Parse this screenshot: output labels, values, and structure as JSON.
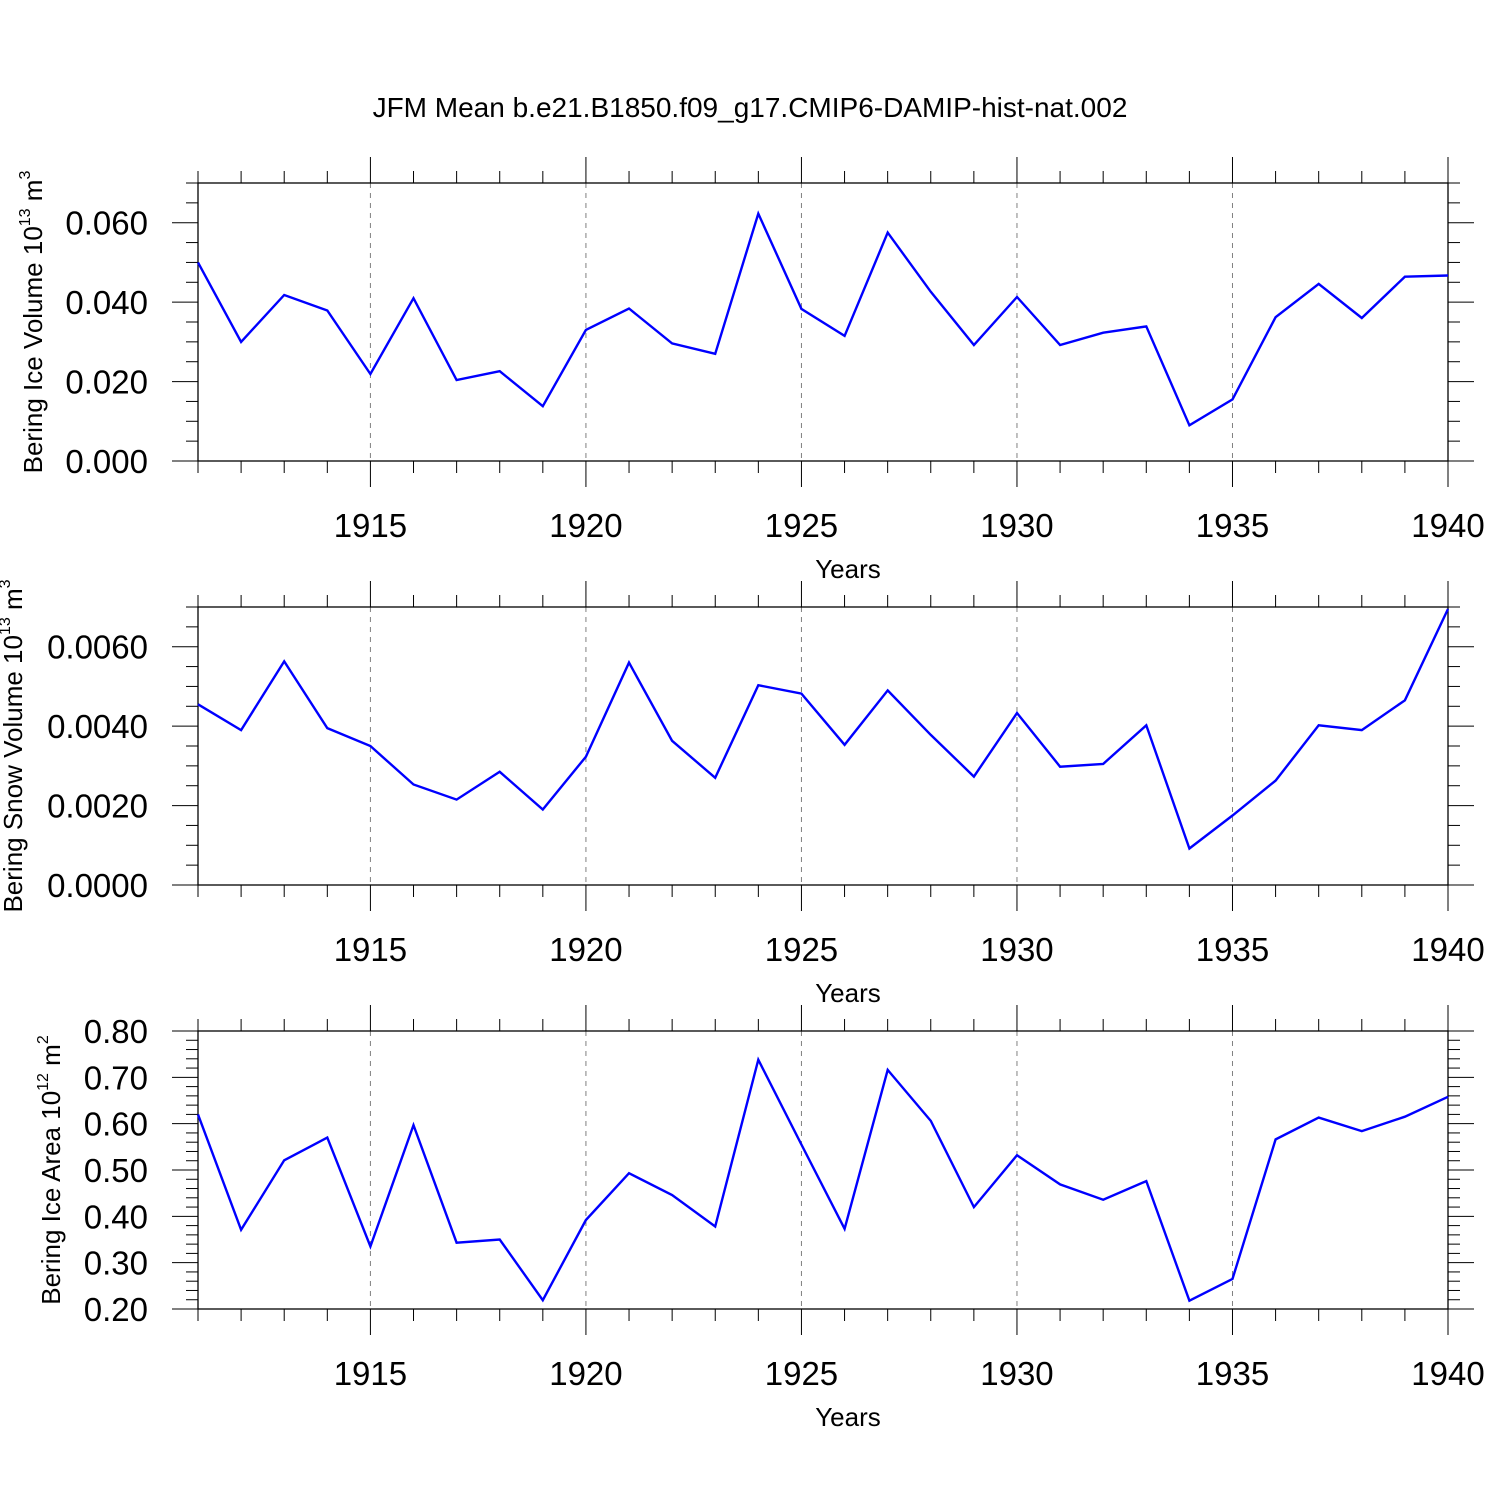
{
  "figure_title": "JFM Mean b.e21.B1850.f09_g17.CMIP6-DAMIP-hist-nat.002",
  "colors": {
    "line": "#0000ff",
    "axis": "#000000",
    "grid": "#808080"
  },
  "chart_data": [
    {
      "type": "line",
      "xlabel": "Years",
      "ylabel": {
        "prefix": "Bering Ice Volume 10",
        "exp": "13",
        "unit": " m",
        "unit_exp": "3"
      },
      "xlim": [
        1911,
        1940
      ],
      "ylim": [
        0,
        0.07
      ],
      "yticks": [
        0.0,
        0.02,
        0.04,
        0.06
      ],
      "ytick_labels": [
        "0.000",
        "0.020",
        "0.040",
        "0.060"
      ],
      "ytick_decimals": 3,
      "yminor": 0.005,
      "xticks": [
        1915,
        1920,
        1925,
        1930,
        1935,
        1940
      ],
      "xtick_labels": [
        "1915",
        "1920",
        "1925",
        "1930",
        "1935",
        "1940"
      ],
      "grid": "dashed vertical at major x ticks",
      "series": [
        {
          "name": "Bering Ice Volume",
          "x": [
            1911,
            1912,
            1913,
            1914,
            1915,
            1916,
            1917,
            1918,
            1919,
            1920,
            1921,
            1922,
            1923,
            1924,
            1925,
            1926,
            1927,
            1928,
            1929,
            1930,
            1931,
            1932,
            1933,
            1934,
            1935,
            1936,
            1937,
            1938,
            1939,
            1940
          ],
          "values": [
            0.05,
            0.03,
            0.0418,
            0.0379,
            0.0219,
            0.041,
            0.0204,
            0.0226,
            0.0138,
            0.033,
            0.0384,
            0.0296,
            0.027,
            0.0623,
            0.0383,
            0.0315,
            0.0575,
            0.0426,
            0.0292,
            0.0413,
            0.0292,
            0.0323,
            0.0339,
            0.009,
            0.0155,
            0.0362,
            0.0446,
            0.036,
            0.0464,
            0.0467
          ]
        }
      ]
    },
    {
      "type": "line",
      "xlabel": "Years",
      "ylabel": {
        "prefix": "Bering Snow Volume 10",
        "exp": "13",
        "unit": " m",
        "unit_exp": "3"
      },
      "xlim": [
        1911,
        1940
      ],
      "ylim": [
        0,
        0.007
      ],
      "yticks": [
        0.0,
        0.002,
        0.004,
        0.006
      ],
      "ytick_labels": [
        "0.0000",
        "0.0020",
        "0.0040",
        "0.0060"
      ],
      "ytick_decimals": 4,
      "yminor": 0.0005,
      "xticks": [
        1915,
        1920,
        1925,
        1930,
        1935,
        1940
      ],
      "xtick_labels": [
        "1915",
        "1920",
        "1925",
        "1930",
        "1935",
        "1940"
      ],
      "grid": "dashed vertical at major x ticks",
      "series": [
        {
          "name": "Bering Snow Volume",
          "x": [
            1911,
            1912,
            1913,
            1914,
            1915,
            1916,
            1917,
            1918,
            1919,
            1920,
            1921,
            1922,
            1923,
            1924,
            1925,
            1926,
            1927,
            1928,
            1929,
            1930,
            1931,
            1932,
            1933,
            1934,
            1935,
            1936,
            1937,
            1938,
            1939,
            1940
          ],
          "values": [
            0.00455,
            0.0039,
            0.00563,
            0.00395,
            0.0035,
            0.00253,
            0.00215,
            0.00285,
            0.0019,
            0.00323,
            0.0056,
            0.00363,
            0.0027,
            0.00503,
            0.00482,
            0.00353,
            0.0049,
            0.00378,
            0.00273,
            0.00433,
            0.00298,
            0.00305,
            0.00402,
            0.00092,
            0.00175,
            0.00263,
            0.00402,
            0.0039,
            0.00465,
            0.00695
          ]
        }
      ]
    },
    {
      "type": "line",
      "xlabel": "Years",
      "ylabel": {
        "prefix": "Bering Ice Area 10",
        "exp": "12",
        "unit": " m",
        "unit_exp": "2"
      },
      "xlim": [
        1911,
        1940
      ],
      "ylim": [
        0.2,
        0.8
      ],
      "yticks": [
        0.2,
        0.3,
        0.4,
        0.5,
        0.6,
        0.7,
        0.8
      ],
      "ytick_labels": [
        "0.20",
        "0.30",
        "0.40",
        "0.50",
        "0.60",
        "0.70",
        "0.80"
      ],
      "ytick_decimals": 2,
      "yminor": 0.02,
      "xticks": [
        1915,
        1920,
        1925,
        1930,
        1935,
        1940
      ],
      "xtick_labels": [
        "1915",
        "1920",
        "1925",
        "1930",
        "1935",
        "1940"
      ],
      "grid": "dashed vertical at major x ticks",
      "series": [
        {
          "name": "Bering Ice Area",
          "x": [
            1911,
            1912,
            1913,
            1914,
            1915,
            1916,
            1917,
            1918,
            1919,
            1920,
            1921,
            1922,
            1923,
            1924,
            1925,
            1926,
            1927,
            1928,
            1929,
            1930,
            1931,
            1932,
            1933,
            1934,
            1935,
            1936,
            1937,
            1938,
            1939,
            1940
          ],
          "values": [
            0.62,
            0.371,
            0.521,
            0.57,
            0.335,
            0.597,
            0.343,
            0.35,
            0.219,
            0.392,
            0.493,
            0.446,
            0.378,
            0.738,
            0.555,
            0.373,
            0.716,
            0.606,
            0.42,
            0.532,
            0.469,
            0.436,
            0.476,
            0.218,
            0.265,
            0.566,
            0.613,
            0.584,
            0.615,
            0.658
          ]
        }
      ]
    }
  ]
}
